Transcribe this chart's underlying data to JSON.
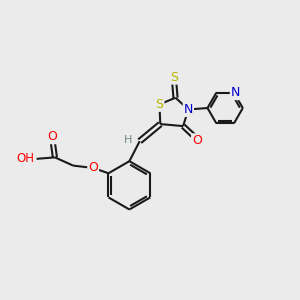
{
  "background_color": "#ebebeb",
  "bond_color": "#1a1a1a",
  "atom_colors": {
    "O": "#ff0000",
    "N": "#0000cc",
    "S": "#b8b800",
    "H": "#6a8a8a",
    "C": "#1a1a1a"
  },
  "figsize": [
    3.0,
    3.0
  ],
  "dpi": 100
}
